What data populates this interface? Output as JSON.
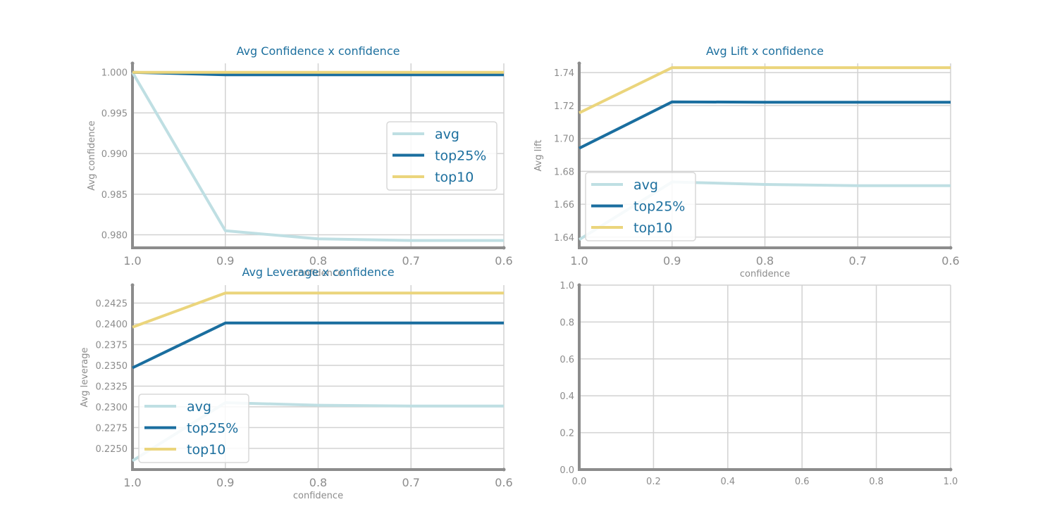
{
  "colors": {
    "avg": "#bfdfe3",
    "top25": "#1a6e9f",
    "top10": "#ebd57c",
    "title": "#1c6f9e",
    "axis": "#8c8c8c",
    "grid": "#d2d2d2"
  },
  "chart_data": [
    {
      "type": "line",
      "title": "Avg Confidence x confidence",
      "xlabel": "confidence",
      "ylabel": "Avg confidence",
      "x": [
        1.0,
        0.9,
        0.8,
        0.7,
        0.6
      ],
      "x_ticks": [
        "1.0",
        "0.9",
        "0.8",
        "0.7",
        "0.6"
      ],
      "y_ticks": [
        "0.980",
        "0.985",
        "0.990",
        "0.995",
        "1.000"
      ],
      "xlim": [
        1.0,
        0.6
      ],
      "ylim": [
        0.9784,
        1.0011
      ],
      "grid": true,
      "legend_position": "center-right",
      "series": [
        {
          "name": "avg",
          "color_key": "avg",
          "values": [
            1.0,
            0.9805,
            0.9795,
            0.9793,
            0.9793
          ]
        },
        {
          "name": "top25%",
          "color_key": "top25",
          "values": [
            1.0,
            0.9997,
            0.9997,
            0.9997,
            0.9997
          ]
        },
        {
          "name": "top10",
          "color_key": "top10",
          "values": [
            1.0,
            1.0,
            1.0,
            1.0,
            1.0
          ]
        }
      ]
    },
    {
      "type": "line",
      "title": "Avg Lift x confidence",
      "xlabel": "confidence",
      "ylabel": "Avg lift",
      "x": [
        1.0,
        0.9,
        0.8,
        0.7,
        0.6
      ],
      "x_ticks": [
        "1.0",
        "0.9",
        "0.8",
        "0.7",
        "0.6"
      ],
      "y_ticks": [
        "1.64",
        "1.66",
        "1.68",
        "1.70",
        "1.72",
        "1.74"
      ],
      "xlim": [
        1.0,
        0.6
      ],
      "ylim": [
        1.6335,
        1.7456
      ],
      "grid": true,
      "legend_position": "lower-left",
      "series": [
        {
          "name": "avg",
          "color_key": "avg",
          "values": [
            1.6385,
            1.6735,
            1.672,
            1.6713,
            1.6713
          ]
        },
        {
          "name": "top25%",
          "color_key": "top25",
          "values": [
            1.694,
            1.7222,
            1.722,
            1.722,
            1.722
          ]
        },
        {
          "name": "top10",
          "color_key": "top10",
          "values": [
            1.7155,
            1.743,
            1.743,
            1.743,
            1.743
          ]
        }
      ]
    },
    {
      "type": "line",
      "title": "Avg Leverage x confidence",
      "xlabel": "confidence",
      "ylabel": "Avg leverage",
      "x": [
        1.0,
        0.9,
        0.8,
        0.7,
        0.6
      ],
      "x_ticks": [
        "1.0",
        "0.9",
        "0.8",
        "0.7",
        "0.6"
      ],
      "y_ticks": [
        "0.2250",
        "0.2275",
        "0.2300",
        "0.2325",
        "0.2350",
        "0.2375",
        "0.2400",
        "0.2425"
      ],
      "xlim": [
        1.0,
        0.6
      ],
      "ylim": [
        0.22245,
        0.24466
      ],
      "grid": true,
      "legend_position": "lower-left",
      "series": [
        {
          "name": "avg",
          "color_key": "avg",
          "values": [
            0.2235,
            0.2305,
            0.2302,
            0.2301,
            0.2301
          ]
        },
        {
          "name": "top25%",
          "color_key": "top25",
          "values": [
            0.2347,
            0.2401,
            0.2401,
            0.2401,
            0.2401
          ]
        },
        {
          "name": "top10",
          "color_key": "top10",
          "values": [
            0.2396,
            0.2437,
            0.2437,
            0.2437,
            0.2437
          ]
        }
      ]
    },
    {
      "type": "line",
      "title": "",
      "xlabel": "",
      "ylabel": "",
      "x": [],
      "x_ticks": [
        "0.0",
        "0.2",
        "0.4",
        "0.6",
        "0.8",
        "1.0"
      ],
      "y_ticks": [
        "0.0",
        "0.2",
        "0.4",
        "0.6",
        "0.8",
        "1.0"
      ],
      "xlim": [
        0,
        1
      ],
      "ylim": [
        0,
        1
      ],
      "grid": true,
      "series": []
    }
  ]
}
